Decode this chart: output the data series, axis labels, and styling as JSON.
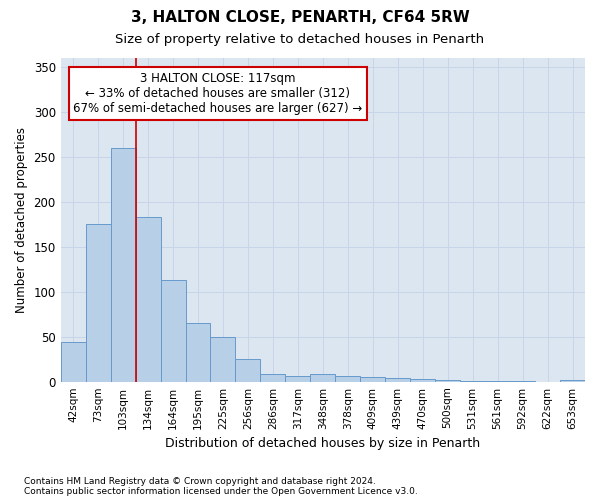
{
  "title1": "3, HALTON CLOSE, PENARTH, CF64 5RW",
  "title2": "Size of property relative to detached houses in Penarth",
  "xlabel": "Distribution of detached houses by size in Penarth",
  "ylabel": "Number of detached properties",
  "bin_labels": [
    "42sqm",
    "73sqm",
    "103sqm",
    "134sqm",
    "164sqm",
    "195sqm",
    "225sqm",
    "256sqm",
    "286sqm",
    "317sqm",
    "348sqm",
    "378sqm",
    "409sqm",
    "439sqm",
    "470sqm",
    "500sqm",
    "531sqm",
    "561sqm",
    "592sqm",
    "622sqm",
    "653sqm"
  ],
  "bar_heights": [
    44,
    175,
    260,
    183,
    113,
    65,
    50,
    25,
    8,
    6,
    9,
    6,
    5,
    4,
    3,
    2,
    1,
    1,
    1,
    0,
    2
  ],
  "bar_color": "#b8cfe8",
  "bar_edgecolor": "#6699cc",
  "annotation_text_line1": "3 HALTON CLOSE: 117sqm",
  "annotation_text_line2": "← 33% of detached houses are smaller (312)",
  "annotation_text_line3": "67% of semi-detached houses are larger (627) →",
  "annotation_box_facecolor": "#ffffff",
  "annotation_box_edgecolor": "#cc0000",
  "vline_color": "#cc0000",
  "grid_color": "#c8d4e8",
  "bg_color": "#dce6f0",
  "ylim": [
    0,
    360
  ],
  "yticks": [
    0,
    50,
    100,
    150,
    200,
    250,
    300,
    350
  ],
  "footnote1": "Contains HM Land Registry data © Crown copyright and database right 2024.",
  "footnote2": "Contains public sector information licensed under the Open Government Licence v3.0."
}
